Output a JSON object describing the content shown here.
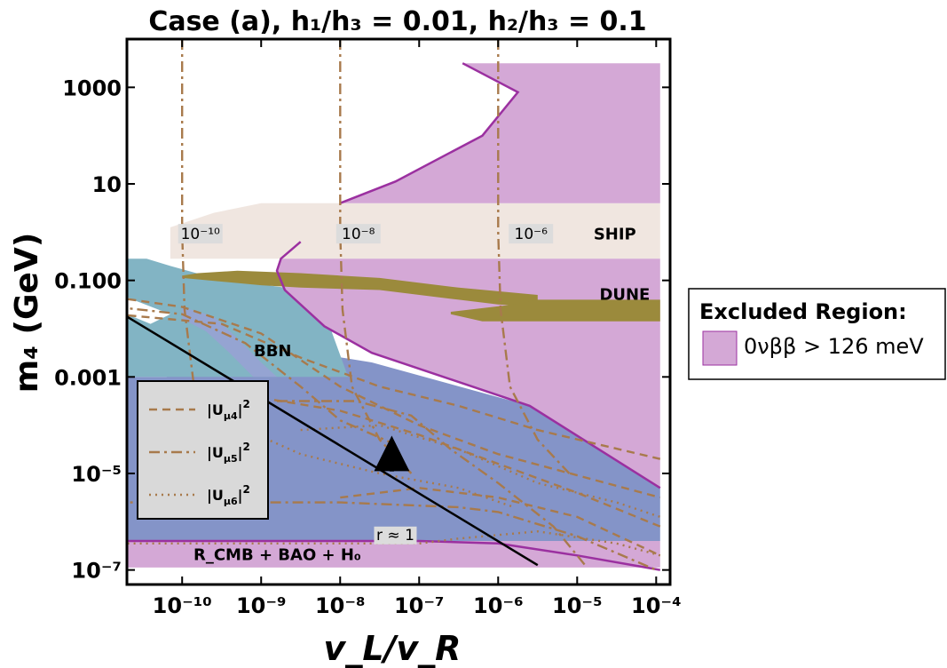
{
  "chart_data": {
    "type": "area",
    "title": "Case (a), h₁/h₃ = 0.01, h₂/h₃ = 0.1",
    "xlabel": "v_L/v_R",
    "ylabel": "m₄ (GeV)",
    "xscale": "log",
    "yscale": "log",
    "xlim": [
      2e-11,
      0.00015
    ],
    "ylim": [
      5e-08,
      10000.0
    ],
    "grid": false,
    "x_ticks": [
      {
        "value": 1e-10,
        "label": "10⁻¹⁰"
      },
      {
        "value": 1e-09,
        "label": "10⁻⁹"
      },
      {
        "value": 1e-08,
        "label": "10⁻⁸"
      },
      {
        "value": 1e-07,
        "label": "10⁻⁷"
      },
      {
        "value": 1e-06,
        "label": "10⁻⁶"
      },
      {
        "value": 1e-05,
        "label": "10⁻⁵"
      },
      {
        "value": 0.0001,
        "label": "10⁻⁴"
      }
    ],
    "y_ticks": [
      {
        "value": 1e-07,
        "label": "10⁻⁷"
      },
      {
        "value": 1e-05,
        "label": "10⁻⁵"
      },
      {
        "value": 0.001,
        "label": "0.001"
      },
      {
        "value": 0.1,
        "label": "0.100"
      },
      {
        "value": 10,
        "label": "10"
      },
      {
        "value": 1000,
        "label": "1000"
      }
    ],
    "regions": [
      {
        "name": "SHIP",
        "label_at": [
          3e-05,
          0.7
        ]
      },
      {
        "name": "DUNE",
        "label_at": [
          4e-05,
          0.04
        ]
      },
      {
        "name": "BBN",
        "label_at": [
          1.4e-09,
          0.0027
        ]
      },
      {
        "name": "R_CMB + BAO + H₀",
        "label_at": [
          1.6e-09,
          1.6e-07
        ]
      }
    ],
    "contour_labels": [
      {
        "text": "10⁻¹⁰",
        "at": [
          1.7e-10,
          0.75
        ]
      },
      {
        "text": "10⁻⁸",
        "at": [
          1.7e-08,
          0.75
        ]
      },
      {
        "text": "10⁻⁶",
        "at": [
          2.6e-06,
          0.75
        ]
      }
    ],
    "annotation": {
      "text": "r ≈ 1",
      "at": [
        5e-08,
        4.2e-07
      ],
      "arrow_at": 4.5e-08
    },
    "legend_lines": [
      {
        "name": "|U",
        "sub": "μ4",
        "sup": "2",
        "style": "dashed"
      },
      {
        "name": "|U",
        "sub": "μ5",
        "sup": "2",
        "style": "dashdot"
      },
      {
        "name": "|U",
        "sub": "μ6",
        "sup": "2",
        "style": "dotted"
      }
    ],
    "legend_region": {
      "title": "Excluded Region:",
      "entry": "0νββ > 126 meV",
      "color": "#d4a8d6"
    },
    "colors": {
      "excluded": "#d4a8d6",
      "excluded_edge": "#9b30a0",
      "ship": "#f0e6e0",
      "dune": "#9b8a3c",
      "bbn": "#82b4c4",
      "cmb": "#8494c8",
      "lines": "#a87a4c"
    }
  }
}
